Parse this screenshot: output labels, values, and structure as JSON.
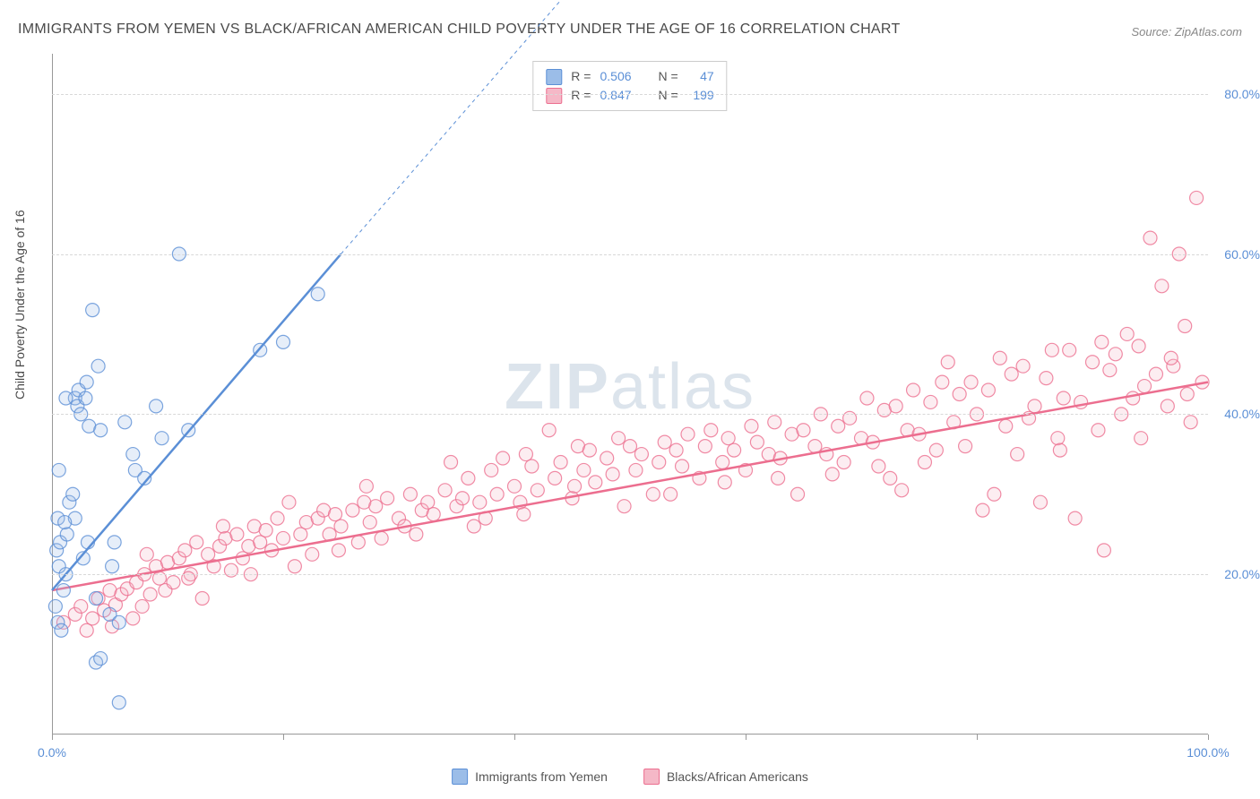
{
  "title": "IMMIGRANTS FROM YEMEN VS BLACK/AFRICAN AMERICAN CHILD POVERTY UNDER THE AGE OF 16 CORRELATION CHART",
  "source": "Source: ZipAtlas.com",
  "watermark_a": "ZIP",
  "watermark_b": "atlas",
  "y_axis_label": "Child Poverty Under the Age of 16",
  "chart": {
    "type": "scatter",
    "xlim": [
      0,
      100
    ],
    "ylim": [
      0,
      85
    ],
    "y_ticks": [
      20,
      40,
      60,
      80
    ],
    "y_tick_labels": [
      "20.0%",
      "40.0%",
      "60.0%",
      "80.0%"
    ],
    "x_ticks": [
      0,
      20,
      40,
      60,
      80,
      100
    ],
    "x_tick_labels_shown": {
      "0": "0.0%",
      "100": "100.0%"
    },
    "background_color": "#ffffff",
    "grid_color": "#d8d8d8",
    "axis_color": "#999999",
    "tick_label_color": "#5b8fd6",
    "series": [
      {
        "name": "Immigrants from Yemen",
        "fill": "#9bbde8",
        "stroke": "#5b8fd6",
        "r_value": "0.506",
        "n_value": "47",
        "trend": {
          "x1": 0,
          "y1": 18,
          "x2": 25,
          "y2": 60,
          "extend_x2": 46,
          "extend_y2": 95
        },
        "points": [
          [
            0.3,
            16
          ],
          [
            0.4,
            23
          ],
          [
            0.5,
            27
          ],
          [
            0.6,
            21
          ],
          [
            0.7,
            24
          ],
          [
            0.5,
            14
          ],
          [
            0.8,
            13
          ],
          [
            1.0,
            18
          ],
          [
            1.2,
            20
          ],
          [
            1.3,
            25
          ],
          [
            1.5,
            29
          ],
          [
            1.8,
            30
          ],
          [
            2.0,
            27
          ],
          [
            2.0,
            42
          ],
          [
            2.2,
            41
          ],
          [
            2.3,
            43
          ],
          [
            2.5,
            40
          ],
          [
            2.9,
            42
          ],
          [
            3.0,
            44
          ],
          [
            3.2,
            38.5
          ],
          [
            3.5,
            53
          ],
          [
            4.0,
            46
          ],
          [
            4.2,
            38
          ],
          [
            5.0,
            15
          ],
          [
            5.2,
            21
          ],
          [
            5.4,
            24
          ],
          [
            5.8,
            14
          ],
          [
            6.3,
            39
          ],
          [
            7.0,
            35
          ],
          [
            7.2,
            33
          ],
          [
            8.0,
            32
          ],
          [
            9.0,
            41
          ],
          [
            11,
            60
          ],
          [
            3.8,
            9
          ],
          [
            4.2,
            9.5
          ],
          [
            0.6,
            33
          ],
          [
            1.2,
            42
          ],
          [
            2.7,
            22
          ],
          [
            3.1,
            24
          ],
          [
            3.8,
            17
          ],
          [
            18,
            48
          ],
          [
            20,
            49
          ],
          [
            23,
            55
          ],
          [
            5.8,
            4
          ],
          [
            9.5,
            37
          ],
          [
            11.8,
            38
          ],
          [
            1.1,
            26.5
          ]
        ]
      },
      {
        "name": "Blacks/African Americans",
        "fill": "#f5b8c7",
        "stroke": "#ec6e8f",
        "r_value": "0.847",
        "n_value": "199",
        "trend": {
          "x1": 0,
          "y1": 18,
          "x2": 100,
          "y2": 44
        },
        "points": [
          [
            1,
            14
          ],
          [
            2,
            15
          ],
          [
            2.5,
            16
          ],
          [
            3,
            13
          ],
          [
            3.5,
            14.5
          ],
          [
            4,
            17
          ],
          [
            4.5,
            15.5
          ],
          [
            5,
            18
          ],
          [
            5.2,
            13.5
          ],
          [
            5.5,
            16.2
          ],
          [
            6,
            17.5
          ],
          [
            6.5,
            18.2
          ],
          [
            7,
            14.5
          ],
          [
            7.3,
            19
          ],
          [
            7.8,
            16
          ],
          [
            8,
            20
          ],
          [
            8.5,
            17.5
          ],
          [
            9,
            21
          ],
          [
            9.3,
            19.5
          ],
          [
            9.8,
            18
          ],
          [
            10,
            21.5
          ],
          [
            10.5,
            19
          ],
          [
            11,
            22
          ],
          [
            11.5,
            23
          ],
          [
            12,
            20
          ],
          [
            12.5,
            24
          ],
          [
            13,
            17
          ],
          [
            13.5,
            22.5
          ],
          [
            14,
            21
          ],
          [
            14.5,
            23.5
          ],
          [
            15,
            24.5
          ],
          [
            15.5,
            20.5
          ],
          [
            16,
            25
          ],
          [
            16.5,
            22
          ],
          [
            17,
            23.5
          ],
          [
            17.5,
            26
          ],
          [
            18,
            24
          ],
          [
            18.5,
            25.5
          ],
          [
            19,
            23
          ],
          [
            19.5,
            27
          ],
          [
            20,
            24.5
          ],
          [
            21,
            21
          ],
          [
            21.5,
            25
          ],
          [
            22,
            26.5
          ],
          [
            22.5,
            22.5
          ],
          [
            23,
            27
          ],
          [
            23.5,
            28
          ],
          [
            24,
            25
          ],
          [
            24.5,
            27.5
          ],
          [
            25,
            26
          ],
          [
            26,
            28
          ],
          [
            26.5,
            24
          ],
          [
            27,
            29
          ],
          [
            27.5,
            26.5
          ],
          [
            28,
            28.5
          ],
          [
            28.5,
            24.5
          ],
          [
            29,
            29.5
          ],
          [
            30,
            27
          ],
          [
            30.5,
            26
          ],
          [
            31,
            30
          ],
          [
            32,
            28
          ],
          [
            32.5,
            29
          ],
          [
            33,
            27.5
          ],
          [
            34,
            30.5
          ],
          [
            34.5,
            34
          ],
          [
            35,
            28.5
          ],
          [
            35.5,
            29.5
          ],
          [
            36,
            32
          ],
          [
            37,
            29
          ],
          [
            37.5,
            27
          ],
          [
            38,
            33
          ],
          [
            38.5,
            30
          ],
          [
            39,
            34.5
          ],
          [
            40,
            31
          ],
          [
            40.5,
            29
          ],
          [
            41,
            35
          ],
          [
            41.5,
            33.5
          ],
          [
            42,
            30.5
          ],
          [
            43,
            38
          ],
          [
            43.5,
            32
          ],
          [
            44,
            34
          ],
          [
            45,
            29.5
          ],
          [
            45.5,
            36
          ],
          [
            46,
            33
          ],
          [
            46.5,
            35.5
          ],
          [
            47,
            31.5
          ],
          [
            48,
            34.5
          ],
          [
            48.5,
            32.5
          ],
          [
            49,
            37
          ],
          [
            50,
            36
          ],
          [
            50.5,
            33
          ],
          [
            51,
            35
          ],
          [
            52,
            30
          ],
          [
            52.5,
            34
          ],
          [
            53,
            36.5
          ],
          [
            54,
            35.5
          ],
          [
            54.5,
            33.5
          ],
          [
            55,
            37.5
          ],
          [
            56,
            32
          ],
          [
            56.5,
            36
          ],
          [
            57,
            38
          ],
          [
            58,
            34
          ],
          [
            58.5,
            37
          ],
          [
            59,
            35.5
          ],
          [
            60,
            33
          ],
          [
            60.5,
            38.5
          ],
          [
            61,
            36.5
          ],
          [
            62,
            35
          ],
          [
            62.5,
            39
          ],
          [
            63,
            34.5
          ],
          [
            64,
            37.5
          ],
          [
            64.5,
            30
          ],
          [
            65,
            38
          ],
          [
            66,
            36
          ],
          [
            66.5,
            40
          ],
          [
            67,
            35
          ],
          [
            68,
            38.5
          ],
          [
            68.5,
            34
          ],
          [
            69,
            39.5
          ],
          [
            70,
            37
          ],
          [
            70.5,
            42
          ],
          [
            71,
            36.5
          ],
          [
            72,
            40.5
          ],
          [
            72.5,
            32
          ],
          [
            73,
            41
          ],
          [
            74,
            38
          ],
          [
            74.5,
            43
          ],
          [
            75,
            37.5
          ],
          [
            76,
            41.5
          ],
          [
            76.5,
            35.5
          ],
          [
            77,
            44
          ],
          [
            78,
            39
          ],
          [
            78.5,
            42.5
          ],
          [
            79,
            36
          ],
          [
            80,
            40
          ],
          [
            80.5,
            28
          ],
          [
            81,
            43
          ],
          [
            82,
            47
          ],
          [
            82.5,
            38.5
          ],
          [
            83,
            45
          ],
          [
            84,
            46
          ],
          [
            84.5,
            39.5
          ],
          [
            85,
            41
          ],
          [
            85.5,
            29
          ],
          [
            86,
            44.5
          ],
          [
            87,
            37
          ],
          [
            87.5,
            42
          ],
          [
            88,
            48
          ],
          [
            88.5,
            27
          ],
          [
            89,
            41.5
          ],
          [
            90,
            46.5
          ],
          [
            90.5,
            38
          ],
          [
            91,
            23
          ],
          [
            91.5,
            45.5
          ],
          [
            92,
            47.5
          ],
          [
            92.5,
            40
          ],
          [
            93,
            50
          ],
          [
            93.5,
            42
          ],
          [
            94,
            48.5
          ],
          [
            94.5,
            43.5
          ],
          [
            95,
            62
          ],
          [
            95.5,
            45
          ],
          [
            96,
            56
          ],
          [
            96.5,
            41
          ],
          [
            97,
            46
          ],
          [
            97.5,
            60
          ],
          [
            98,
            51
          ],
          [
            98.5,
            39
          ],
          [
            99,
            67
          ],
          [
            99.5,
            44
          ],
          [
            8.2,
            22.5
          ],
          [
            11.8,
            19.5
          ],
          [
            14.8,
            26
          ],
          [
            17.2,
            20
          ],
          [
            20.5,
            29
          ],
          [
            24.8,
            23
          ],
          [
            27.2,
            31
          ],
          [
            31.5,
            25
          ],
          [
            36.5,
            26
          ],
          [
            40.8,
            27.5
          ],
          [
            45.2,
            31
          ],
          [
            49.5,
            28.5
          ],
          [
            53.5,
            30
          ],
          [
            58.2,
            31.5
          ],
          [
            62.8,
            32
          ],
          [
            67.5,
            32.5
          ],
          [
            71.5,
            33.5
          ],
          [
            75.5,
            34
          ],
          [
            79.5,
            44
          ],
          [
            83.5,
            35
          ],
          [
            87.2,
            35.5
          ],
          [
            90.8,
            49
          ],
          [
            94.2,
            37
          ],
          [
            96.8,
            47
          ],
          [
            98.2,
            42.5
          ],
          [
            86.5,
            48
          ],
          [
            81.5,
            30
          ],
          [
            77.5,
            46.5
          ],
          [
            73.5,
            30.5
          ]
        ]
      }
    ]
  },
  "legend_top_labels": {
    "r": "R =",
    "n": "N ="
  },
  "legend_bottom": [
    {
      "label": "Immigrants from Yemen",
      "fill": "#9bbde8",
      "stroke": "#5b8fd6"
    },
    {
      "label": "Blacks/African Americans",
      "fill": "#f5b8c7",
      "stroke": "#ec6e8f"
    }
  ]
}
